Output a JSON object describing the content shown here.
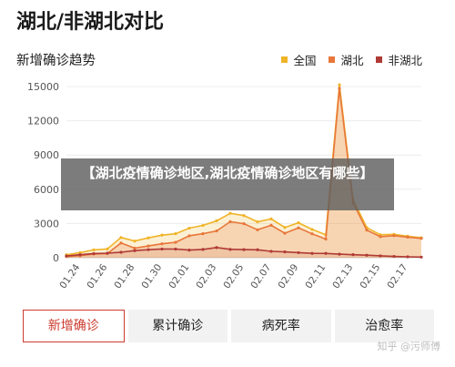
{
  "page_title": "湖北/非湖北对比",
  "overlay_text": "【湖北疫情确诊地区,湖北疫情确诊地区有哪些】",
  "watermark": "知乎 @污师傅",
  "tabs": [
    {
      "label": "新增确诊",
      "active": true
    },
    {
      "label": "累计确诊",
      "active": false
    },
    {
      "label": "病死率",
      "active": false
    },
    {
      "label": "治愈率",
      "active": false
    }
  ],
  "chart_data": {
    "type": "area",
    "title": "新增确诊趋势",
    "xlabel": "",
    "ylabel": "",
    "ylim": [
      0,
      15000
    ],
    "yticks": [
      0,
      3000,
      6000,
      9000,
      12000,
      15000
    ],
    "grid": true,
    "legend_position": "top-right",
    "x": [
      "01.23",
      "01.24",
      "01.25",
      "01.26",
      "01.27",
      "01.28",
      "01.29",
      "01.30",
      "01.31",
      "02.01",
      "02.02",
      "02.03",
      "02.04",
      "02.05",
      "02.06",
      "02.07",
      "02.08",
      "02.09",
      "02.10",
      "02.11",
      "02.12",
      "02.13",
      "02.14",
      "02.15",
      "02.16",
      "02.17",
      "02.18"
    ],
    "xtick_labels": [
      "01.24",
      "01.26",
      "01.28",
      "01.30",
      "02.01",
      "02.03",
      "02.05",
      "02.07",
      "02.09",
      "02.11",
      "02.13",
      "02.15",
      "02.17"
    ],
    "series": [
      {
        "name": "全国",
        "color": "#f0b428",
        "values": [
          259,
          444,
          688,
          769,
          1771,
          1459,
          1737,
          1982,
          2102,
          2590,
          2829,
          3235,
          3887,
          3694,
          3143,
          3399,
          2656,
          3062,
          2478,
          2015,
          15152,
          5090,
          2641,
          2009,
          2048,
          1886,
          1749
        ]
      },
      {
        "name": "湖北",
        "color": "#e8773a",
        "values": [
          105,
          180,
          323,
          371,
          1291,
          840,
          1032,
          1220,
          1347,
          1921,
          2103,
          2345,
          3156,
          2987,
          2447,
          2841,
          2147,
          2618,
          2097,
          1638,
          14840,
          4823,
          2420,
          1843,
          1933,
          1807,
          1693
        ]
      },
      {
        "name": "非湖北",
        "color": "#b03a35",
        "values": [
          154,
          264,
          365,
          398,
          480,
          619,
          705,
          762,
          755,
          669,
          726,
          890,
          731,
          707,
          696,
          558,
          509,
          444,
          381,
          377,
          312,
          267,
          221,
          166,
          115,
          79,
          56
        ]
      }
    ]
  }
}
